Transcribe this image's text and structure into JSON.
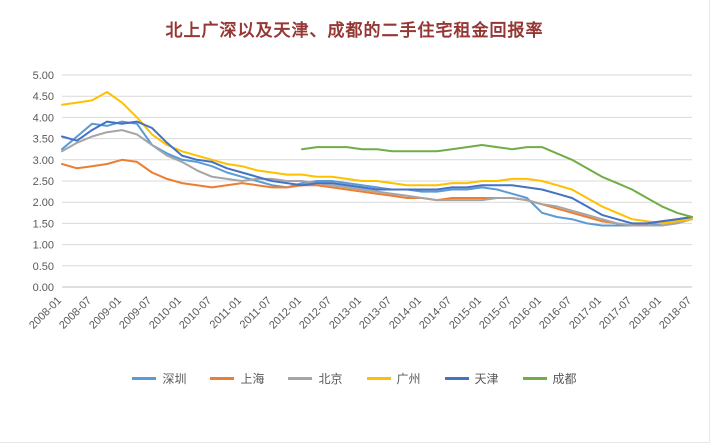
{
  "chart_data": {
    "type": "line",
    "title": "北上广深以及天津、成都的二手住宅租金回报率",
    "title_color": "#953735",
    "grid": "horizontal",
    "legend_position": "bottom",
    "y_axis": {
      "min": 0,
      "max": 5,
      "step": 0.5,
      "tick_format_decimals": 2,
      "tick_labels": [
        "0.00",
        "0.50",
        "1.00",
        "1.50",
        "2.00",
        "2.50",
        "3.00",
        "3.50",
        "4.00",
        "4.50",
        "5.00"
      ]
    },
    "x_total_months": 126,
    "x_ticks": [
      "2008-01",
      "2008-07",
      "2009-01",
      "2009-07",
      "2010-01",
      "2010-07",
      "2011-01",
      "2011-07",
      "2012-01",
      "2012-07",
      "2013-01",
      "2013-07",
      "2014-01",
      "2014-07",
      "2015-01",
      "2015-07",
      "2016-01",
      "2016-07",
      "2017-01",
      "2017-07",
      "2018-01",
      "2018-07"
    ],
    "series": [
      {
        "id": "shenzhen",
        "name": "深圳",
        "color": "#5B9BD5",
        "start_month": 0,
        "step_months": 3,
        "values": [
          3.25,
          3.55,
          3.85,
          3.8,
          3.9,
          3.85,
          3.35,
          3.15,
          3.0,
          2.95,
          2.85,
          2.7,
          2.6,
          2.5,
          2.4,
          2.35,
          2.45,
          2.5,
          2.5,
          2.45,
          2.4,
          2.35,
          2.3,
          2.3,
          2.25,
          2.25,
          2.3,
          2.3,
          2.35,
          2.3,
          2.2,
          2.1,
          1.75,
          1.65,
          1.6,
          1.5,
          1.45,
          1.45,
          1.45,
          1.45,
          1.5,
          1.55,
          1.6
        ]
      },
      {
        "id": "shanghai",
        "name": "上海",
        "color": "#ED7D31",
        "start_month": 0,
        "step_months": 3,
        "values": [
          2.9,
          2.8,
          2.85,
          2.9,
          3.0,
          2.95,
          2.7,
          2.55,
          2.45,
          2.4,
          2.35,
          2.4,
          2.45,
          2.4,
          2.35,
          2.35,
          2.4,
          2.4,
          2.35,
          2.3,
          2.25,
          2.2,
          2.15,
          2.1,
          2.1,
          2.05,
          2.1,
          2.1,
          2.1,
          2.1,
          2.1,
          2.05,
          1.95,
          1.85,
          1.75,
          1.65,
          1.55,
          1.5,
          1.45,
          1.5,
          1.55,
          1.6,
          1.65
        ]
      },
      {
        "id": "beijing",
        "name": "北京",
        "color": "#A5A5A5",
        "start_month": 0,
        "step_months": 3,
        "values": [
          3.2,
          3.4,
          3.55,
          3.65,
          3.7,
          3.6,
          3.35,
          3.1,
          2.95,
          2.75,
          2.6,
          2.55,
          2.5,
          2.55,
          2.55,
          2.5,
          2.5,
          2.45,
          2.4,
          2.35,
          2.3,
          2.25,
          2.2,
          2.15,
          2.1,
          2.05,
          2.05,
          2.05,
          2.05,
          2.1,
          2.1,
          2.05,
          1.95,
          1.9,
          1.8,
          1.7,
          1.6,
          1.5,
          1.45,
          1.45,
          1.45,
          1.5,
          1.6
        ]
      },
      {
        "id": "guangzhou",
        "name": "广州",
        "color": "#FFC000",
        "start_month": 0,
        "step_months": 3,
        "values": [
          4.3,
          4.35,
          4.4,
          4.6,
          4.35,
          4.0,
          3.6,
          3.35,
          3.2,
          3.1,
          3.0,
          2.9,
          2.85,
          2.75,
          2.7,
          2.65,
          2.65,
          2.6,
          2.6,
          2.55,
          2.5,
          2.5,
          2.45,
          2.4,
          2.4,
          2.4,
          2.45,
          2.45,
          2.5,
          2.5,
          2.55,
          2.55,
          2.5,
          2.4,
          2.3,
          2.1,
          1.9,
          1.75,
          1.6,
          1.55,
          1.5,
          1.55,
          1.6
        ]
      },
      {
        "id": "tianjin",
        "name": "天津",
        "color": "#4472C4",
        "start_month": 0,
        "step_months": 3,
        "values": [
          3.55,
          3.45,
          3.7,
          3.9,
          3.85,
          3.9,
          3.75,
          3.4,
          3.1,
          3.0,
          2.95,
          2.8,
          2.7,
          2.6,
          2.5,
          2.45,
          2.4,
          2.45,
          2.45,
          2.4,
          2.35,
          2.3,
          2.3,
          2.3,
          2.3,
          2.3,
          2.35,
          2.35,
          2.4,
          2.4,
          2.4,
          2.35,
          2.3,
          2.2,
          2.1,
          1.9,
          1.7,
          1.6,
          1.5,
          1.5,
          1.55,
          1.6,
          1.65
        ]
      },
      {
        "id": "chengdu",
        "name": "成都",
        "color": "#70AD47",
        "start_month": 48,
        "step_months": 3,
        "values": [
          3.25,
          3.3,
          3.3,
          3.3,
          3.25,
          3.25,
          3.2,
          3.2,
          3.2,
          3.2,
          3.25,
          3.3,
          3.35,
          3.3,
          3.25,
          3.3,
          3.3,
          3.15,
          3.0,
          2.8,
          2.6,
          2.45,
          2.3,
          2.1,
          1.9,
          1.75,
          1.65
        ]
      }
    ]
  }
}
